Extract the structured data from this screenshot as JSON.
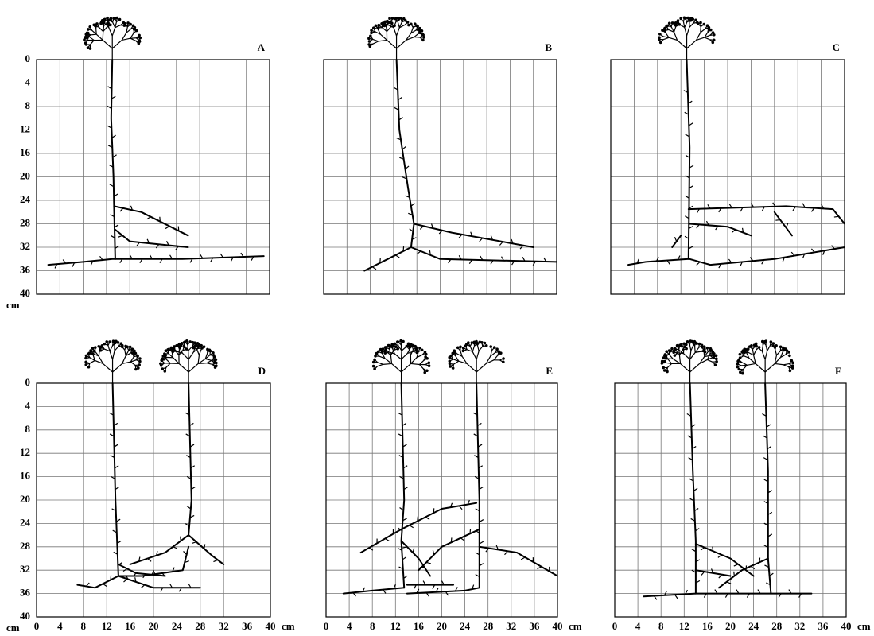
{
  "panels": [
    {
      "label": "A"
    },
    {
      "label": "B"
    },
    {
      "label": "C"
    },
    {
      "label": "D"
    },
    {
      "label": "E"
    },
    {
      "label": "F"
    }
  ],
  "y_ticks": [
    0,
    4,
    8,
    12,
    16,
    20,
    24,
    28,
    32,
    36,
    40
  ],
  "y_unit": "cm",
  "x_ticks": [
    0,
    4,
    8,
    12,
    16,
    20,
    24,
    28,
    32,
    36,
    40
  ],
  "x_unit": "cm"
}
